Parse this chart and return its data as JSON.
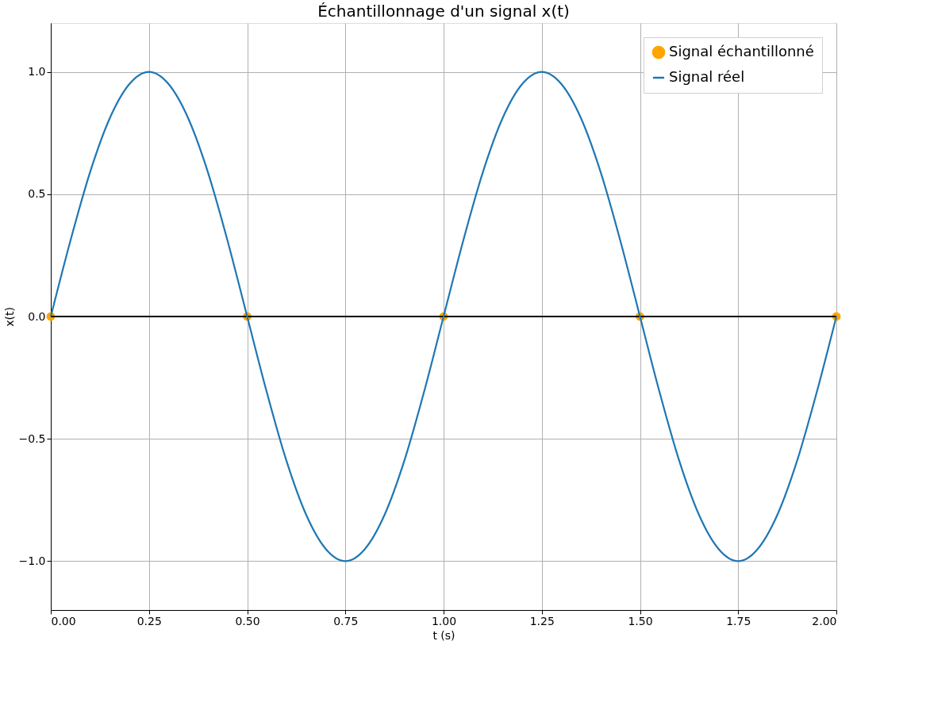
{
  "chart_data": {
    "type": "line",
    "title": "Échantillonnage d'un signal x(t)",
    "xlabel": "t (s)",
    "ylabel": "x(t)",
    "xlim": [
      0,
      2
    ],
    "ylim": [
      -1.2,
      1.2
    ],
    "xticks": [
      {
        "value": 0,
        "label": "0.00"
      },
      {
        "value": 0.25,
        "label": "0.25"
      },
      {
        "value": 0.5,
        "label": "0.50"
      },
      {
        "value": 0.75,
        "label": "0.75"
      },
      {
        "value": 1,
        "label": "1.00"
      },
      {
        "value": 1.25,
        "label": "1.25"
      },
      {
        "value": 1.5,
        "label": "1.50"
      },
      {
        "value": 1.75,
        "label": "1.75"
      },
      {
        "value": 2,
        "label": "2.00"
      }
    ],
    "yticks": [
      {
        "value": -1,
        "label": "−1.0"
      },
      {
        "value": -0.5,
        "label": "−0.5"
      },
      {
        "value": 0,
        "label": "0.0"
      },
      {
        "value": 0.5,
        "label": "0.5"
      },
      {
        "value": 1,
        "label": "1.0"
      }
    ],
    "grid": true,
    "legend": "top right",
    "ref_lines": [
      {
        "axis": "y",
        "value": 0,
        "color": "#000000"
      }
    ],
    "series": [
      {
        "name": "Signal échantillonné",
        "type": "scatter",
        "marker": "circle",
        "color": "#ffa500",
        "x": [
          0,
          0.5,
          1,
          1.5,
          2
        ],
        "values": [
          0,
          0,
          0,
          0,
          0
        ]
      },
      {
        "name": "Signal réel",
        "color": "#1f77b4",
        "x": [
          0,
          0.05,
          0.1,
          0.15,
          0.2,
          0.25,
          0.3,
          0.35,
          0.4,
          0.45,
          0.5,
          0.55,
          0.6,
          0.65,
          0.7,
          0.75,
          0.8,
          0.85,
          0.9,
          0.95,
          1,
          1.05,
          1.1,
          1.15,
          1.2,
          1.25,
          1.3,
          1.35,
          1.4,
          1.45,
          1.5,
          1.55,
          1.6,
          1.65,
          1.7,
          1.75,
          1.8,
          1.85,
          1.9,
          1.95,
          2
        ],
        "values": [
          0,
          0.31,
          0.59,
          0.81,
          0.95,
          1,
          0.95,
          0.81,
          0.59,
          0.31,
          0,
          -0.31,
          -0.59,
          -0.81,
          -0.95,
          -1,
          -0.95,
          -0.81,
          -0.59,
          -0.31,
          0,
          0.31,
          0.59,
          0.81,
          0.95,
          1,
          0.95,
          0.81,
          0.59,
          0.31,
          0,
          -0.31,
          -0.59,
          -0.81,
          -0.95,
          -1,
          -0.95,
          -0.81,
          -0.59,
          -0.31,
          0
        ]
      }
    ]
  }
}
